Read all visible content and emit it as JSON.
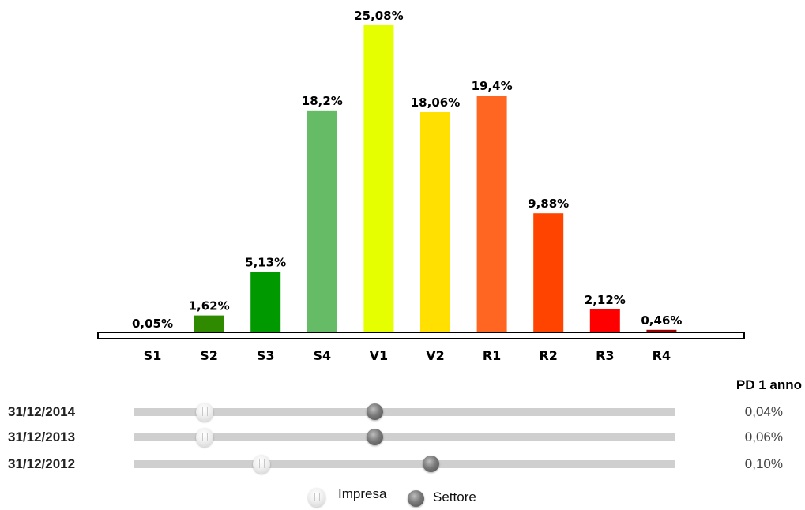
{
  "chart_data": {
    "type": "bar",
    "categories": [
      "S1",
      "S2",
      "S3",
      "S4",
      "V1",
      "V2",
      "R1",
      "R2",
      "R3",
      "R4"
    ],
    "values": [
      0.05,
      1.62,
      5.13,
      18.2,
      25.08,
      18.06,
      19.4,
      9.88,
      2.12,
      0.46
    ],
    "data_labels": [
      "0,05%",
      "1,62%",
      "5,13%",
      "18,2%",
      "25,08%",
      "18,06%",
      "19,4%",
      "9,88%",
      "2,12%",
      "0,46%"
    ],
    "colors": [
      "#2f7f00",
      "#2f8a00",
      "#009900",
      "#66bb66",
      "#e5ff00",
      "#ffe000",
      "#ff6622",
      "#ff4400",
      "#ff0000",
      "#990000"
    ],
    "title": "",
    "xlabel": "",
    "ylabel": "",
    "ylim": [
      0,
      25.08
    ],
    "grid": false
  },
  "pd": {
    "header": "PD 1 anno",
    "rows": [
      {
        "date": "31/12/2014",
        "impresa_position": 0.13,
        "settore_position": 0.445,
        "value": "0,04%"
      },
      {
        "date": "31/12/2013",
        "impresa_position": 0.13,
        "settore_position": 0.445,
        "value": "0,06%"
      },
      {
        "date": "31/12/2012",
        "impresa_position": 0.235,
        "settore_position": 0.548,
        "value": "0,10%"
      }
    ],
    "legend": {
      "impresa_label": "Impresa",
      "settore_label": "Settore"
    }
  }
}
